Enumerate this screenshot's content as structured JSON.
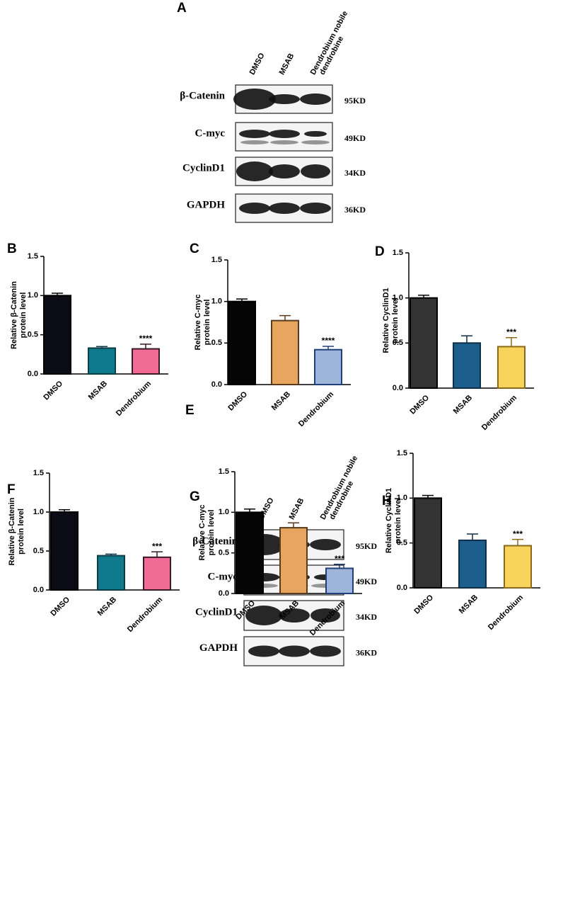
{
  "blots": [
    {
      "panel": "A",
      "lanes": [
        [
          "DMSO"
        ],
        [
          "MSAB"
        ],
        [
          "Dendrobium nobile",
          "dendrobine"
        ]
      ],
      "proteins": [
        {
          "name": "β-Catenin",
          "size": "95KD"
        },
        {
          "name": "C-myc",
          "size": "49KD"
        },
        {
          "name": "CyclinD1",
          "size": "34KD"
        },
        {
          "name": "GAPDH",
          "size": "36KD"
        }
      ]
    },
    {
      "panel": "E",
      "lanes": [
        [
          "DMSO"
        ],
        [
          "MSAB"
        ],
        [
          "Dendrobium nobile",
          "dendrobine"
        ]
      ],
      "proteins": [
        {
          "name": "β-Catenin",
          "size": "95KD"
        },
        {
          "name": "C-myc",
          "size": "49KD"
        },
        {
          "name": "CyclinD1",
          "size": "34KD"
        },
        {
          "name": "GAPDH",
          "size": "36KD"
        }
      ]
    }
  ],
  "chart_data": [
    {
      "type": "bar",
      "panel": "B",
      "ylabel": [
        "Relative β-Catenin",
        "protein level"
      ],
      "categories": [
        "DMSO",
        "MSAB",
        "Dendrobium"
      ],
      "values": [
        1.0,
        0.33,
        0.32
      ],
      "errors": [
        0.03,
        0.02,
        0.06
      ],
      "significance": [
        null,
        null,
        "****"
      ],
      "colors": [
        "#0b0b16",
        "#0f7a8c",
        "#f26b97"
      ],
      "edgecolors": [
        "#000000",
        "#0b3d48",
        "#3a1a24"
      ],
      "ylim": [
        0,
        1.5
      ],
      "yticks": [
        {
          "value": 0,
          "label": "0.0"
        },
        {
          "value": 0.5,
          "label": "0.5"
        },
        {
          "value": 1,
          "label": "1.0"
        },
        {
          "value": 1.5,
          "label": "1.5"
        }
      ]
    },
    {
      "type": "bar",
      "panel": "C",
      "ylabel": [
        "Relative C-myc",
        "protein level"
      ],
      "categories": [
        "DMSO",
        "MSAB",
        "Dendrobium"
      ],
      "values": [
        1.0,
        0.77,
        0.42
      ],
      "errors": [
        0.03,
        0.06,
        0.04
      ],
      "significance": [
        null,
        null,
        "****"
      ],
      "colors": [
        "#050505",
        "#e8a55f",
        "#9db5d9"
      ],
      "edgecolors": [
        "#000000",
        "#5a3b1c",
        "#1f3f7a"
      ],
      "ylim": [
        0,
        1.5
      ],
      "yticks": [
        {
          "value": 0,
          "label": "0.0"
        },
        {
          "value": 0.5,
          "label": "0.5"
        },
        {
          "value": 1,
          "label": "1.0"
        },
        {
          "value": 1.5,
          "label": "1.5"
        }
      ]
    },
    {
      "type": "bar",
      "panel": "D",
      "ylabel": [
        "Relative CyclinD1",
        "protein level"
      ],
      "categories": [
        "DMSO",
        "MSAB",
        "Dendrobium"
      ],
      "values": [
        1.0,
        0.5,
        0.46
      ],
      "errors": [
        0.03,
        0.08,
        0.1
      ],
      "significance": [
        null,
        null,
        "***"
      ],
      "colors": [
        "#333333",
        "#1e5e8c",
        "#f9d45c"
      ],
      "edgecolors": [
        "#000000",
        "#0f2e48",
        "#8a6a1a"
      ],
      "ylim": [
        0,
        1.5
      ],
      "yticks": [
        {
          "value": 0,
          "label": "0.0"
        },
        {
          "value": 0.5,
          "label": "0.5"
        },
        {
          "value": 1,
          "label": "1.0"
        },
        {
          "value": 1.5,
          "label": "1.5"
        }
      ]
    },
    {
      "type": "bar",
      "panel": "F",
      "ylabel": [
        "Relative β-Catenin",
        "protein level"
      ],
      "categories": [
        "DMSO",
        "MSAB",
        "Dendrobium"
      ],
      "values": [
        1.0,
        0.44,
        0.42
      ],
      "errors": [
        0.03,
        0.02,
        0.07
      ],
      "significance": [
        null,
        null,
        "***"
      ],
      "colors": [
        "#0b0b16",
        "#0f7a8c",
        "#f26b97"
      ],
      "edgecolors": [
        "#000000",
        "#0b3d48",
        "#3a1a24"
      ],
      "ylim": [
        0,
        1.5
      ],
      "yticks": [
        {
          "value": 0,
          "label": "0.0"
        },
        {
          "value": 0.5,
          "label": "0.5"
        },
        {
          "value": 1,
          "label": "1.0"
        },
        {
          "value": 1.5,
          "label": "1.5"
        }
      ]
    },
    {
      "type": "bar",
      "panel": "G",
      "ylabel": [
        "Relative C-myc",
        "protein level"
      ],
      "categories": [
        "DMSO",
        "MSAB",
        "Dendrobium"
      ],
      "values": [
        1.0,
        0.81,
        0.31
      ],
      "errors": [
        0.04,
        0.06,
        0.05
      ],
      "significance": [
        null,
        null,
        "***"
      ],
      "colors": [
        "#050505",
        "#e8a55f",
        "#9db5d9"
      ],
      "edgecolors": [
        "#000000",
        "#5a3b1c",
        "#1f3f7a"
      ],
      "ylim": [
        0,
        1.5
      ],
      "yticks": [
        {
          "value": 0,
          "label": "0.0"
        },
        {
          "value": 0.5,
          "label": "0.5"
        },
        {
          "value": 1,
          "label": "1.0"
        },
        {
          "value": 1.5,
          "label": "1.5"
        }
      ]
    },
    {
      "type": "bar",
      "panel": "H",
      "ylabel": [
        "Relative CyclinD1",
        "protein level"
      ],
      "categories": [
        "DMSO",
        "MSAB",
        "Dendrobium"
      ],
      "values": [
        1.0,
        0.53,
        0.47
      ],
      "errors": [
        0.03,
        0.07,
        0.07
      ],
      "significance": [
        null,
        null,
        "***"
      ],
      "colors": [
        "#333333",
        "#1e5e8c",
        "#f9d45c"
      ],
      "edgecolors": [
        "#000000",
        "#0f2e48",
        "#8a6a1a"
      ],
      "ylim": [
        0,
        1.5
      ],
      "yticks": [
        {
          "value": 0,
          "label": "0.0"
        },
        {
          "value": 0.5,
          "label": "0.5"
        },
        {
          "value": 1,
          "label": "1.0"
        },
        {
          "value": 1.5,
          "label": "1.5"
        }
      ]
    }
  ]
}
